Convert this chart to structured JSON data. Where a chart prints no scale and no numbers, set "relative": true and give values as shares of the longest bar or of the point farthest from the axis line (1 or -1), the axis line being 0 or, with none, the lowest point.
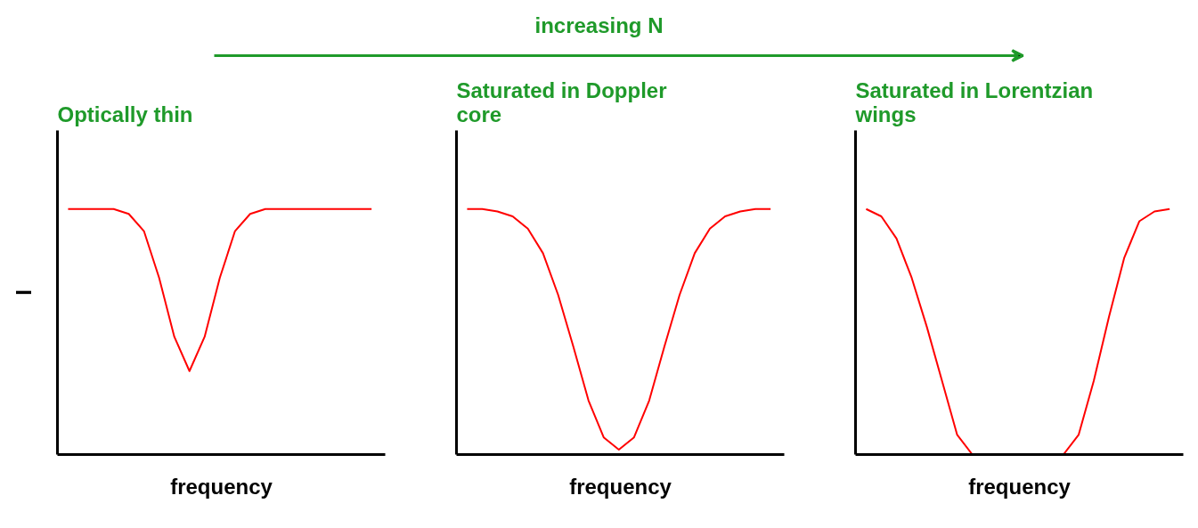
{
  "chart_data": [
    {
      "type": "line",
      "title": "Optically thin",
      "xlabel": "frequency",
      "ylabel": "I",
      "relative": true,
      "annotations": [
        "increasing N"
      ],
      "categories": [
        null,
        null,
        null,
        null,
        null,
        null,
        null,
        null,
        null,
        null,
        null,
        null,
        null,
        null,
        null,
        null,
        null,
        null,
        null,
        null,
        null
      ],
      "series": [
        {
          "color": "#ff0000",
          "values": [
            1,
            1,
            1,
            1,
            0.98,
            0.91,
            0.72,
            0.48,
            0.34,
            0.48,
            0.72,
            0.91,
            0.98,
            1,
            1,
            1,
            1,
            1,
            1,
            1,
            1
          ]
        }
      ]
    },
    {
      "type": "line",
      "title": "Saturated in Doppler\ncore",
      "xlabel": "frequency",
      "relative": true,
      "categories": [
        null,
        null,
        null,
        null,
        null,
        null,
        null,
        null,
        null,
        null,
        null,
        null,
        null,
        null,
        null,
        null,
        null,
        null,
        null,
        null,
        null
      ],
      "series": [
        {
          "color": "#ff0000",
          "values": [
            1,
            1,
            0.99,
            0.97,
            0.92,
            0.82,
            0.65,
            0.44,
            0.22,
            0.07,
            0.02,
            0.07,
            0.22,
            0.44,
            0.65,
            0.82,
            0.92,
            0.97,
            0.99,
            1,
            1
          ]
        }
      ]
    },
    {
      "type": "line",
      "title": "Saturated in Lorentzian\n wings",
      "xlabel": "frequency",
      "relative": true,
      "categories": [
        null,
        null,
        null,
        null,
        null,
        null,
        null,
        null,
        null,
        null,
        null,
        null,
        null,
        null,
        null,
        null,
        null,
        null,
        null,
        null,
        null
      ],
      "series": [
        {
          "color": "#ff0000",
          "values": [
            1,
            0.97,
            0.88,
            0.72,
            0.52,
            0.3,
            0.08,
            0,
            0,
            0,
            0,
            0,
            0,
            0,
            0.08,
            0.3,
            0.56,
            0.8,
            0.95,
            0.99,
            1
          ]
        }
      ]
    }
  ]
}
